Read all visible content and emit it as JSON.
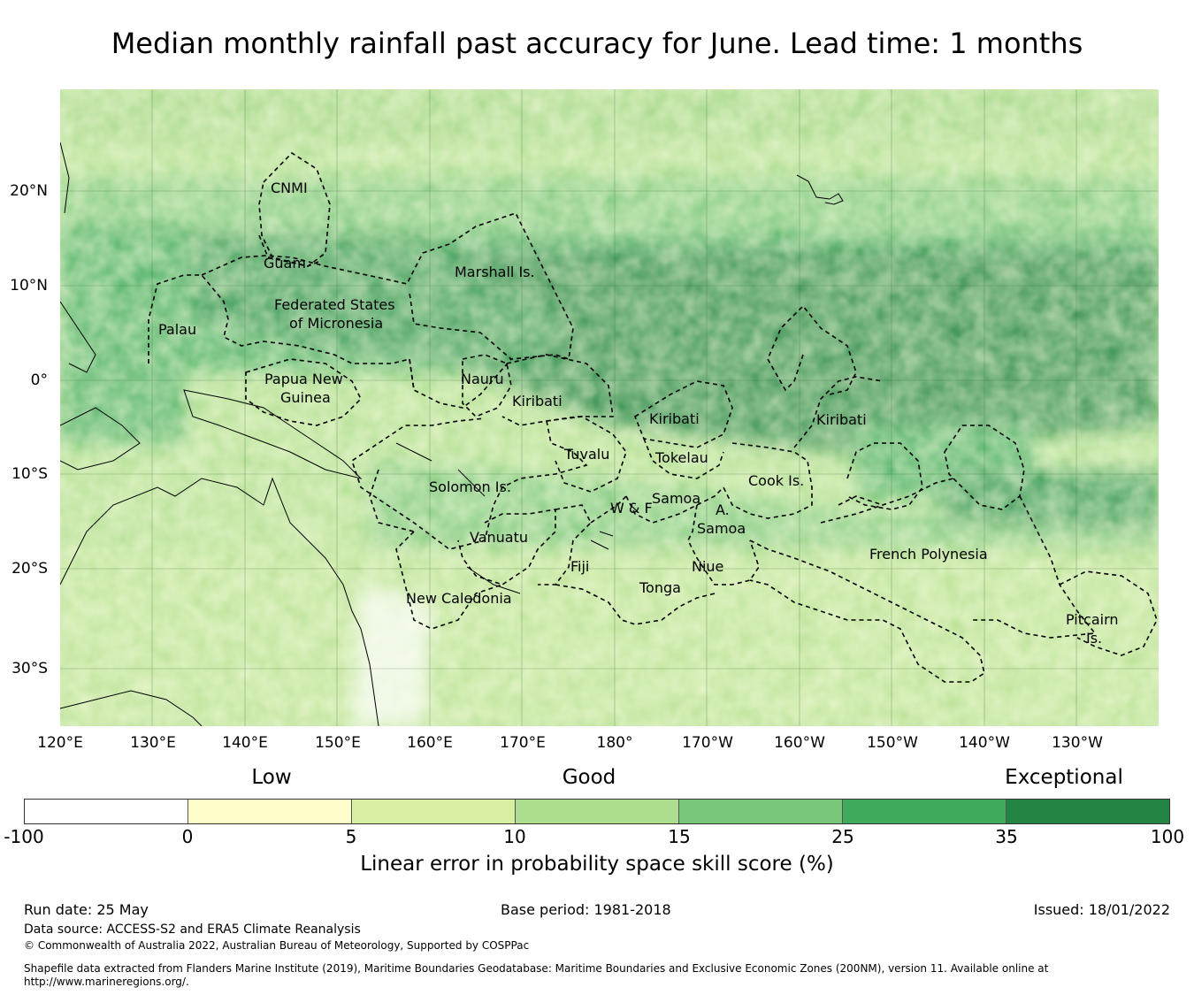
{
  "title": "Median monthly rainfall past accuracy for June. Lead time: 1 months",
  "map": {
    "longitude_labels": [
      "120°E",
      "130°E",
      "140°E",
      "150°E",
      "160°E",
      "170°E",
      "180°",
      "170°W",
      "160°W",
      "150°W",
      "140°W",
      "130°W"
    ],
    "latitude_labels": [
      "20°N",
      "10°N",
      "0°",
      "10°S",
      "20°S",
      "30°S"
    ],
    "region_labels": [
      {
        "text": "CNMI"
      },
      {
        "text": "Guam"
      },
      {
        "text": "Marshall Is."
      },
      {
        "text": "Federated States"
      },
      {
        "text": "of Micronesia"
      },
      {
        "text": "Palau"
      },
      {
        "text": "Papua New"
      },
      {
        "text": "Guinea"
      },
      {
        "text": "Nauru"
      },
      {
        "text": "Kiribati"
      },
      {
        "text": "Kiribati"
      },
      {
        "text": "Kiribati"
      },
      {
        "text": "Tuvalu"
      },
      {
        "text": "Tokelau"
      },
      {
        "text": "Solomon Is."
      },
      {
        "text": "Cook Is."
      },
      {
        "text": "Samoa"
      },
      {
        "text": "W & F"
      },
      {
        "text": "A."
      },
      {
        "text": "Samoa"
      },
      {
        "text": "Vanuatu"
      },
      {
        "text": "Fiji"
      },
      {
        "text": "Niue"
      },
      {
        "text": "Tonga"
      },
      {
        "text": "French Polynesia"
      },
      {
        "text": "New Caledonia"
      },
      {
        "text": "Pitcairn"
      },
      {
        "text": "Is."
      }
    ]
  },
  "legend": {
    "categories": [
      "Low",
      "Good",
      "Exceptional"
    ],
    "ticks": [
      "-100",
      "0",
      "5",
      "10",
      "15",
      "25",
      "35",
      "100"
    ],
    "colors": [
      "#ffffff",
      "#ffffcc",
      "#d9f0a3",
      "#addd8e",
      "#78c679",
      "#41ab5d",
      "#238443"
    ],
    "label": "Linear error in probability space skill score (%)"
  },
  "footer": {
    "run_date": "Run date: 25 May",
    "base_period": "Base period: 1981-2018",
    "issued": "Issued: 18/01/2022",
    "data_source": "Data source: ACCESS-S2 and ERA5 Climate Reanalysis",
    "copyright": "© Commonwealth of Australia 2022, Australian Bureau of Meteorology, Supported by COSPPac",
    "shapefile": "Shapefile data extracted from Flanders Marine Institute (2019), Maritime Boundaries Geodatabase: Maritime Boundaries and Exclusive Economic Zones (200NM), version 11. Available online at",
    "url": "http://www.marineregions.org/."
  }
}
